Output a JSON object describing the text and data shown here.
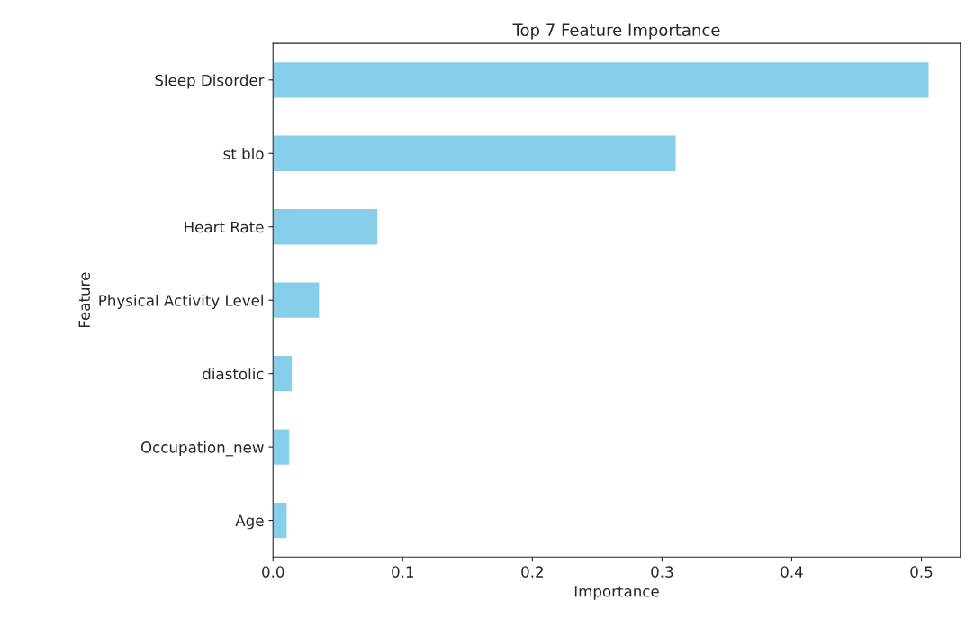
{
  "chart_data": {
    "type": "bar",
    "orientation": "horizontal",
    "title": "Top 7 Feature Importance",
    "xlabel": "Importance",
    "ylabel": "Feature",
    "categories": [
      "Sleep Disorder",
      "st blo",
      "Heart Rate",
      "Physical Activity Level",
      "diastolic",
      "Occupation_new",
      "Age"
    ],
    "values": [
      0.506,
      0.311,
      0.081,
      0.036,
      0.015,
      0.013,
      0.011
    ],
    "color": "#87ceeb",
    "xlim": [
      0,
      0.53
    ],
    "xticks": [
      {
        "value": 0,
        "label": "0.0"
      },
      0.1,
      0.2,
      0.3,
      0.4,
      0.5
    ],
    "grid": false,
    "legend": false
  }
}
